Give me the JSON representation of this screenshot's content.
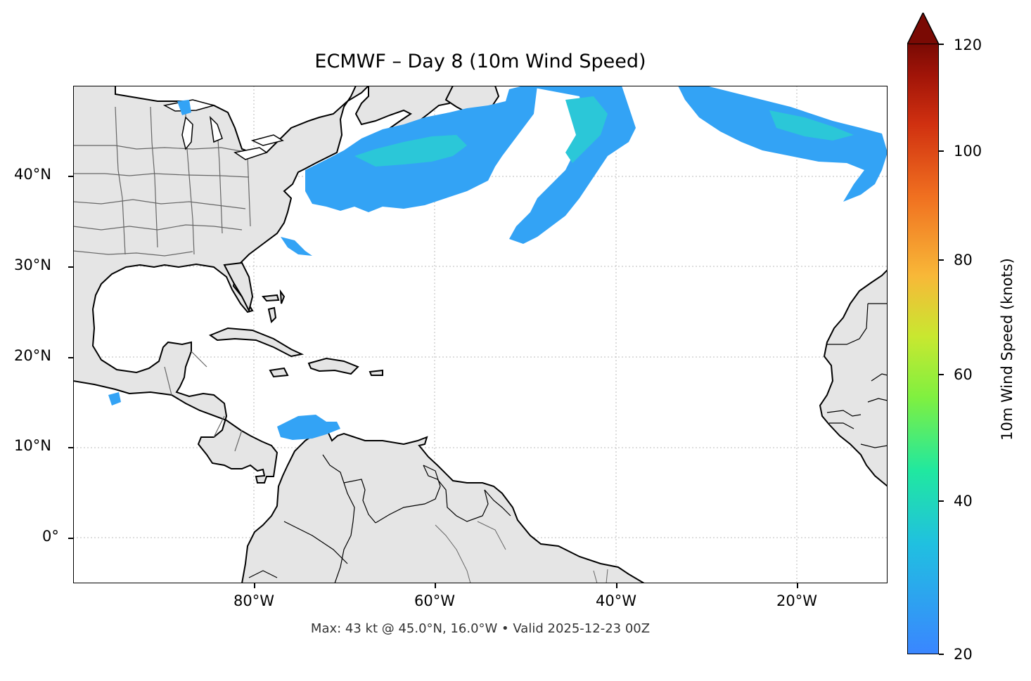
{
  "title": "ECMWF – Day 8 (10m Wind Speed)",
  "footer": "Max: 43 kt @ 45.0°N, 16.0°W • Valid 2025-12-23 00Z",
  "map": {
    "lon_range": [
      -100,
      -10
    ],
    "lat_range": [
      -5,
      50
    ],
    "grid": true,
    "land_color": "#e5e5e5",
    "coast_color": "#000000",
    "border_color": "#666666"
  },
  "axes": {
    "x_ticks": [
      "80°W",
      "60°W",
      "40°W",
      "20°W"
    ],
    "y_ticks": [
      "40°N",
      "30°N",
      "20°N",
      "10°N",
      "0°"
    ]
  },
  "colorbar": {
    "label": "10m Wind Speed (knots)",
    "ticks": [
      "120",
      "100",
      "80",
      "60",
      "40",
      "20"
    ],
    "range": [
      20,
      120
    ],
    "extend": "max",
    "colors": {
      "low": "#3a86ff",
      "mid": "#20e8a0",
      "high": "#7a0a04"
    }
  }
}
